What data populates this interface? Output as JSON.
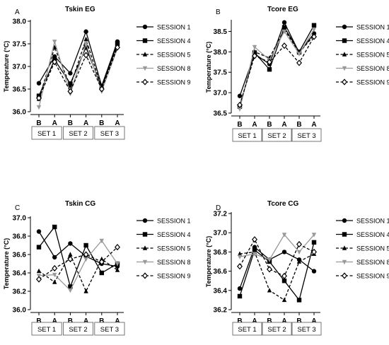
{
  "figure": {
    "set_labels": [
      "SET 1",
      "SET 2",
      "SET 3"
    ],
    "ylabel": "Temperature  (°C)"
  },
  "chart_data": [
    {
      "type": "line",
      "panel_letter": "A",
      "title": "Tskin EG",
      "ylabel": "Temperature  (°C)",
      "ylim": [
        36.0,
        38.0
      ],
      "yticks": [
        "36.0",
        "36.5",
        "37.0",
        "37.5",
        "38.0"
      ],
      "x": [
        "B",
        "A",
        "B",
        "A",
        "B",
        "A"
      ],
      "groups": [
        "SET 1",
        "SET 2",
        "SET 3"
      ],
      "legend_position": "right",
      "series": [
        {
          "name": "SESSION  1",
          "marker": "circle",
          "dash": "solid",
          "color": "#000000",
          "values": [
            36.63,
            37.22,
            36.85,
            37.77,
            36.57,
            37.55
          ]
        },
        {
          "name": "SESSION  4",
          "marker": "square",
          "dash": "solid",
          "color": "#000000",
          "values": [
            36.35,
            37.15,
            36.62,
            37.42,
            36.53,
            37.5
          ]
        },
        {
          "name": "SESSION  5",
          "marker": "triangle",
          "dash": "dash",
          "color": "#000000",
          "values": [
            36.28,
            37.42,
            36.57,
            37.6,
            36.52,
            37.45
          ]
        },
        {
          "name": "SESSION  8",
          "marker": "triangle-down",
          "dash": "solid",
          "color": "#999999",
          "values": [
            36.1,
            37.55,
            36.4,
            37.5,
            36.45,
            37.4
          ]
        },
        {
          "name": "SESSION  9",
          "marker": "diamond-open",
          "dash": "dash",
          "color": "#000000",
          "values": [
            36.3,
            37.1,
            36.45,
            37.25,
            36.5,
            37.42
          ]
        }
      ]
    },
    {
      "type": "line",
      "panel_letter": "B",
      "title": "Tcore EG",
      "ylabel": "Temperature  (°C)",
      "ylim": [
        36.5,
        38.75
      ],
      "yticks": [
        "36.5",
        "37.0",
        "37.5",
        "38.0",
        "38.5"
      ],
      "x": [
        "B",
        "A",
        "B",
        "A",
        "B",
        "A"
      ],
      "groups": [
        "SET 1",
        "SET 2",
        "SET 3"
      ],
      "legend_position": "right",
      "series": [
        {
          "name": "SESSION  1",
          "marker": "circle",
          "dash": "solid",
          "color": "#000000",
          "values": [
            36.92,
            37.95,
            37.7,
            38.72,
            37.98,
            38.45
          ]
        },
        {
          "name": "SESSION  4",
          "marker": "square",
          "dash": "solid",
          "color": "#000000",
          "values": [
            36.67,
            37.98,
            37.57,
            38.6,
            38.0,
            38.65
          ]
        },
        {
          "name": "SESSION  5",
          "marker": "triangle",
          "dash": "dash",
          "color": "#000000",
          "values": [
            36.65,
            38.0,
            37.85,
            38.55,
            37.98,
            38.4
          ]
        },
        {
          "name": "SESSION  8",
          "marker": "triangle-down",
          "dash": "solid",
          "color": "#999999",
          "values": [
            36.6,
            38.12,
            37.8,
            38.5,
            37.95,
            38.55
          ]
        },
        {
          "name": "SESSION  9",
          "marker": "diamond-open",
          "dash": "dash",
          "color": "#000000",
          "values": [
            36.7,
            37.9,
            37.75,
            38.15,
            37.73,
            38.37
          ]
        }
      ]
    },
    {
      "type": "line",
      "panel_letter": "C",
      "title": "Tskin CG",
      "ylabel": "Temperature  (°C)",
      "ylim": [
        36.0,
        37.0
      ],
      "yticks": [
        "36.0",
        "36.2",
        "36.4",
        "36.6",
        "36.8",
        "37.0"
      ],
      "x": [
        "B",
        "A",
        "B",
        "A",
        "B",
        "A"
      ],
      "groups": [
        "SET 1",
        "SET 2",
        "SET 3"
      ],
      "legend_position": "right",
      "series": [
        {
          "name": "SESSION  1",
          "marker": "circle",
          "dash": "solid",
          "color": "#000000",
          "values": [
            36.85,
            36.57,
            36.72,
            36.58,
            36.5,
            36.47
          ]
        },
        {
          "name": "SESSION  4",
          "marker": "square",
          "dash": "solid",
          "color": "#000000",
          "values": [
            36.68,
            36.9,
            36.25,
            36.7,
            36.4,
            36.5
          ]
        },
        {
          "name": "SESSION  5",
          "marker": "triangle",
          "dash": "dash",
          "color": "#000000",
          "values": [
            36.42,
            36.3,
            36.6,
            36.2,
            36.55,
            36.43
          ]
        },
        {
          "name": "SESSION  8",
          "marker": "triangle-down",
          "dash": "solid",
          "color": "#999999",
          "values": [
            36.37,
            36.38,
            36.21,
            36.55,
            36.75,
            36.5
          ]
        },
        {
          "name": "SESSION  9",
          "marker": "diamond-open",
          "dash": "dash",
          "color": "#000000",
          "values": [
            36.33,
            36.45,
            36.55,
            36.6,
            36.52,
            36.68
          ]
        }
      ]
    },
    {
      "type": "line",
      "panel_letter": "D",
      "title": "Tcore CG",
      "ylabel": "Temperature  (°C)",
      "ylim": [
        36.2,
        37.2
      ],
      "yticks": [
        "36.2",
        "36.4",
        "36.6",
        "36.8",
        "37.0",
        "37.2"
      ],
      "x": [
        "B",
        "A",
        "B",
        "A",
        "B",
        "A"
      ],
      "groups": [
        "SET 1",
        "SET 2",
        "SET 3"
      ],
      "legend_position": "right",
      "series": [
        {
          "name": "SESSION  1",
          "marker": "circle",
          "dash": "solid",
          "color": "#000000",
          "values": [
            36.42,
            36.85,
            36.72,
            36.8,
            36.72,
            36.6
          ]
        },
        {
          "name": "SESSION  4",
          "marker": "square",
          "dash": "solid",
          "color": "#000000",
          "values": [
            36.34,
            36.82,
            36.7,
            36.5,
            36.3,
            36.9
          ]
        },
        {
          "name": "SESSION  5",
          "marker": "triangle",
          "dash": "dash",
          "color": "#000000",
          "values": [
            36.78,
            36.8,
            36.4,
            36.3,
            36.7,
            36.78
          ]
        },
        {
          "name": "SESSION  8",
          "marker": "triangle-down",
          "dash": "solid",
          "color": "#999999",
          "values": [
            36.75,
            36.78,
            36.72,
            36.98,
            36.8,
            36.98
          ]
        },
        {
          "name": "SESSION  9",
          "marker": "diamond-open",
          "dash": "dash",
          "color": "#000000",
          "values": [
            36.65,
            36.93,
            36.62,
            36.55,
            36.88,
            36.8
          ]
        }
      ]
    }
  ]
}
